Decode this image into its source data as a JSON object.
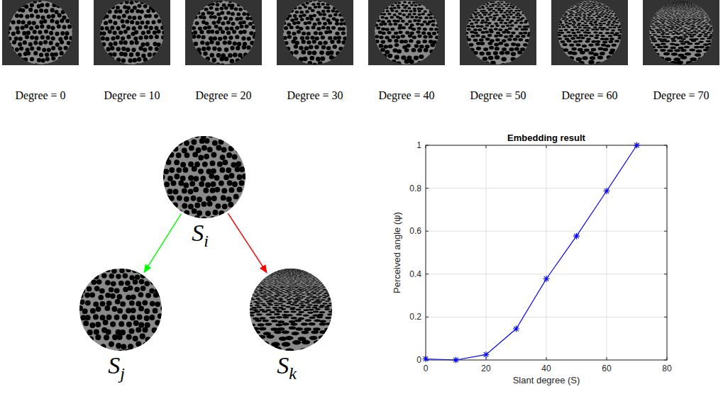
{
  "texture_row": [
    {
      "caption": "Degree = 0",
      "slant": 0
    },
    {
      "caption": "Degree = 10",
      "slant": 10
    },
    {
      "caption": "Degree = 20",
      "slant": 20
    },
    {
      "caption": "Degree = 30",
      "slant": 30
    },
    {
      "caption": "Degree = 40",
      "slant": 40
    },
    {
      "caption": "Degree = 50",
      "slant": 50
    },
    {
      "caption": "Degree = 60",
      "slant": 60
    },
    {
      "caption": "Degree = 70",
      "slant": 70
    }
  ],
  "diagram": {
    "nodes": [
      {
        "label": "S",
        "subscript": "i",
        "slant": 0
      },
      {
        "label": "S",
        "subscript": "j",
        "slant": 10
      },
      {
        "label": "S",
        "subscript": "k",
        "slant": 70
      }
    ],
    "edges": [
      {
        "from": 0,
        "to": 1,
        "color": "#00ff00"
      },
      {
        "from": 0,
        "to": 2,
        "color": "#ff0000"
      }
    ]
  },
  "chart_data": {
    "type": "line",
    "title": "Embedding result",
    "x_label": "Slant degree (S)",
    "y_label": "Perceived angle (ψ)",
    "x": [
      0,
      10,
      20,
      30,
      40,
      50,
      60,
      70
    ],
    "values": [
      0.005,
      0.0,
      0.025,
      0.145,
      0.378,
      0.577,
      0.787,
      1.0
    ],
    "color": "#0000ff",
    "marker": "asterisk",
    "line_style": "solid",
    "xlim": [
      0,
      80
    ],
    "xticks": [
      0,
      20,
      40,
      60,
      80
    ],
    "ylim": [
      0,
      1
    ],
    "yticks": [
      0,
      0.2,
      0.4,
      0.6,
      0.8,
      1
    ],
    "grid": true
  }
}
